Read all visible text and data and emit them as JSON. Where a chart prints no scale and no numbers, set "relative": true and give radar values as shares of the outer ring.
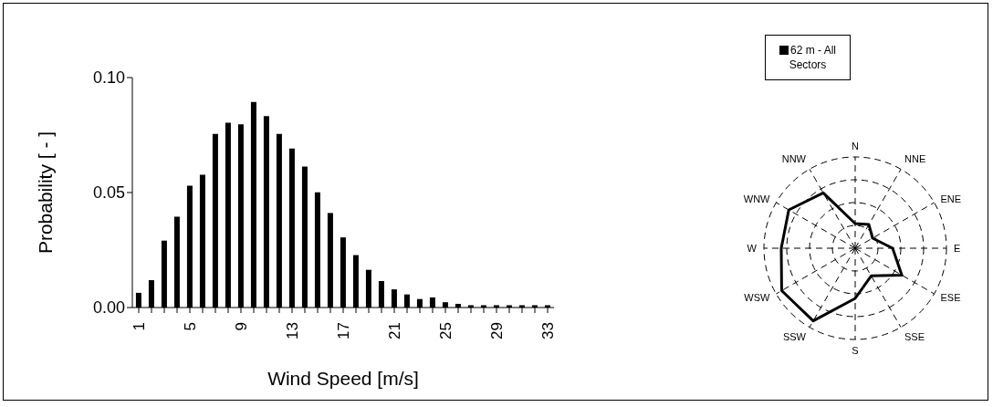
{
  "chart_data": [
    {
      "type": "bar",
      "xlabel": "Wind Speed [m/s]",
      "ylabel": "Probability [ - ]",
      "categories": [
        "1",
        null,
        null,
        null,
        "5",
        null,
        null,
        null,
        "9",
        null,
        null,
        null,
        "13",
        null,
        null,
        null,
        "17",
        null,
        null,
        null,
        "21",
        null,
        null,
        null,
        "25",
        null,
        null,
        null,
        "29",
        null,
        null,
        null,
        "33"
      ],
      "values": [
        0.0064,
        0.0119,
        0.0291,
        0.0395,
        0.053,
        0.0577,
        0.0755,
        0.0804,
        0.0797,
        0.0894,
        0.0832,
        0.0755,
        0.0691,
        0.0613,
        0.0501,
        0.0411,
        0.0305,
        0.0228,
        0.0164,
        0.0115,
        0.0079,
        0.0057,
        0.0037,
        0.0044,
        0.0023,
        0.0016,
        0.001,
        0.001,
        0.001,
        0.001,
        0.001,
        0.001,
        0.001
      ],
      "color": "#000000",
      "ylim": [
        0,
        0.1
      ],
      "yticks": [
        {
          "value": 0,
          "label": "0.00"
        },
        {
          "value": 0.05,
          "label": "0.05"
        },
        {
          "value": 0.1,
          "label": "0.10"
        }
      ]
    },
    {
      "type": "radar",
      "categories": [
        "N",
        "NNE",
        "ENE",
        "E",
        "ESE",
        "SSE",
        "S",
        "SSW",
        "WSW",
        "W",
        "WNW",
        "NNW"
      ],
      "series": [
        {
          "name": "62 m - All Sectors",
          "color": "#000000",
          "values": [
            0.27,
            0.3,
            0.22,
            0.41,
            0.59,
            0.35,
            0.55,
            0.92,
            0.93,
            0.81,
            0.84,
            0.7
          ]
        }
      ],
      "relative": true,
      "grid": true,
      "legend": "top"
    }
  ]
}
